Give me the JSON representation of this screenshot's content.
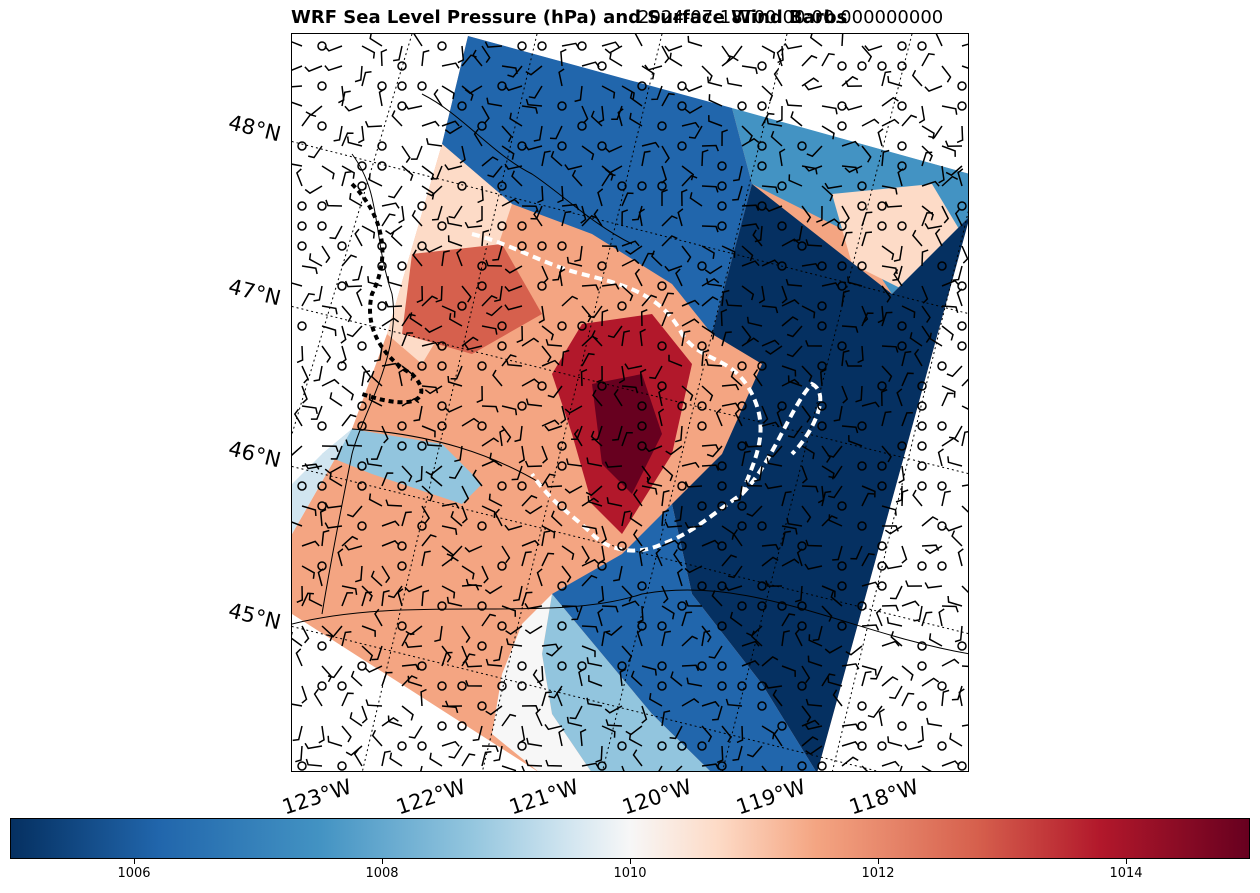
{
  "title": {
    "left": "WRF Sea Level Pressure (hPa) and Surface Wind Barbs",
    "right": "2024-07-18T00:00:00.000000000"
  },
  "map": {
    "latitude_labels": [
      "48°N",
      "47°N",
      "46°N",
      "45°N"
    ],
    "longitude_labels": [
      "123°W",
      "122°W",
      "121°W",
      "120°W",
      "119°W",
      "118°W"
    ]
  },
  "colorbar": {
    "colormap": "RdBu_r",
    "range": [
      1005,
      1015
    ],
    "tick_labels": [
      "1006",
      "1008",
      "1010",
      "1012",
      "1014"
    ],
    "colors": {
      "low": "#053061",
      "mid": "#f7f7f7",
      "high": "#67001f"
    }
  }
}
